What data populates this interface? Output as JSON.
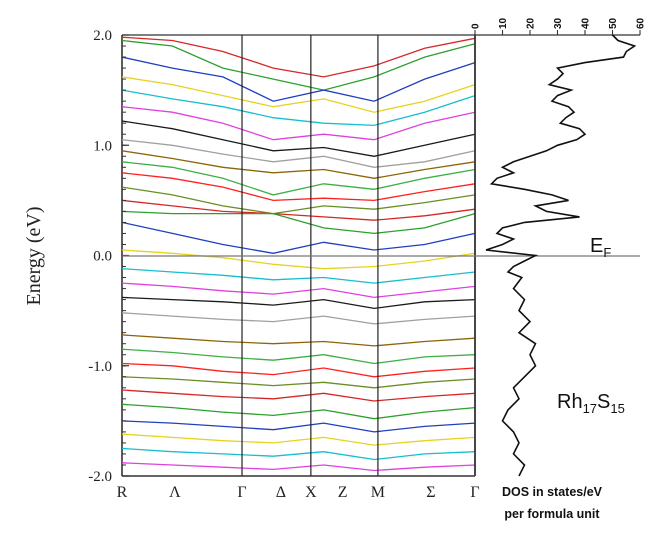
{
  "chart_data": [
    {
      "type": "line",
      "name": "band-structure",
      "ylabel": "Energy (eV)",
      "ylim": [
        -2.0,
        2.0
      ],
      "y_ticks": [
        -2.0,
        -1.0,
        0.0,
        1.0,
        2.0
      ],
      "y_tick_labels": [
        "-2.0",
        "-1.0",
        "0.0",
        "1.0",
        "2.0"
      ],
      "k_points": [
        {
          "label": "R",
          "x": 0.0
        },
        {
          "label": "Λ",
          "x": 0.15
        },
        {
          "label": "Γ",
          "x": 0.34
        },
        {
          "label": "Δ",
          "x": 0.45
        },
        {
          "label": "X",
          "x": 0.535
        },
        {
          "label": "Z",
          "x": 0.625
        },
        {
          "label": "M",
          "x": 0.725
        },
        {
          "label": "Σ",
          "x": 0.875
        },
        {
          "label": "Γ",
          "x": 1.0
        }
      ],
      "high_symmetry_lines": [
        0.34,
        0.535,
        0.725
      ],
      "fermi_level": 0.0,
      "band_colors": [
        "#d62728",
        "#2ca02c",
        "#1f3fbf",
        "#e6d320",
        "#17becf",
        "#e040e0",
        "#1a1a1a",
        "#a0a0a0",
        "#8b6508",
        "#3cb043",
        "#ff2020",
        "#6b8e23"
      ],
      "bands": [
        [
          1.98,
          1.95,
          1.85,
          1.7,
          1.62,
          1.72,
          1.88,
          1.97
        ],
        [
          1.95,
          1.9,
          1.7,
          1.6,
          1.5,
          1.62,
          1.8,
          1.92
        ],
        [
          1.8,
          1.7,
          1.62,
          1.4,
          1.5,
          1.4,
          1.6,
          1.75
        ],
        [
          1.62,
          1.55,
          1.45,
          1.35,
          1.42,
          1.3,
          1.4,
          1.55
        ],
        [
          1.5,
          1.42,
          1.35,
          1.25,
          1.2,
          1.18,
          1.3,
          1.45
        ],
        [
          1.35,
          1.3,
          1.2,
          1.05,
          1.1,
          1.05,
          1.2,
          1.3
        ],
        [
          1.22,
          1.15,
          1.05,
          0.95,
          0.98,
          0.9,
          1.0,
          1.1
        ],
        [
          1.05,
          1.0,
          0.92,
          0.85,
          0.9,
          0.8,
          0.85,
          0.95
        ],
        [
          0.95,
          0.88,
          0.8,
          0.75,
          0.78,
          0.7,
          0.78,
          0.85
        ],
        [
          0.85,
          0.8,
          0.7,
          0.55,
          0.65,
          0.6,
          0.7,
          0.78
        ],
        [
          0.75,
          0.7,
          0.62,
          0.5,
          0.52,
          0.5,
          0.58,
          0.65
        ],
        [
          0.62,
          0.55,
          0.45,
          0.38,
          0.45,
          0.42,
          0.48,
          0.55
        ],
        [
          0.5,
          0.45,
          0.4,
          0.38,
          0.35,
          0.32,
          0.36,
          0.42
        ],
        [
          0.4,
          0.38,
          0.38,
          0.38,
          0.25,
          0.2,
          0.25,
          0.38
        ],
        [
          0.3,
          0.2,
          0.1,
          0.02,
          0.12,
          0.05,
          0.1,
          0.2
        ],
        [
          0.05,
          0.02,
          -0.02,
          -0.08,
          -0.12,
          -0.1,
          -0.05,
          0.02
        ],
        [
          -0.12,
          -0.15,
          -0.18,
          -0.22,
          -0.2,
          -0.25,
          -0.2,
          -0.15
        ],
        [
          -0.25,
          -0.28,
          -0.32,
          -0.35,
          -0.3,
          -0.38,
          -0.33,
          -0.28
        ],
        [
          -0.38,
          -0.4,
          -0.42,
          -0.45,
          -0.4,
          -0.48,
          -0.42,
          -0.4
        ],
        [
          -0.52,
          -0.55,
          -0.58,
          -0.6,
          -0.55,
          -0.62,
          -0.58,
          -0.55
        ],
        [
          -0.72,
          -0.75,
          -0.78,
          -0.8,
          -0.78,
          -0.82,
          -0.78,
          -0.75
        ],
        [
          -0.85,
          -0.88,
          -0.92,
          -0.95,
          -0.9,
          -0.98,
          -0.92,
          -0.9
        ],
        [
          -0.98,
          -1.0,
          -1.05,
          -1.08,
          -1.02,
          -1.1,
          -1.05,
          -1.02
        ],
        [
          -1.1,
          -1.12,
          -1.15,
          -1.18,
          -1.15,
          -1.2,
          -1.15,
          -1.12
        ],
        [
          -1.22,
          -1.25,
          -1.28,
          -1.3,
          -1.25,
          -1.32,
          -1.28,
          -1.25
        ],
        [
          -1.35,
          -1.38,
          -1.42,
          -1.45,
          -1.4,
          -1.48,
          -1.42,
          -1.38
        ],
        [
          -1.5,
          -1.52,
          -1.55,
          -1.58,
          -1.52,
          -1.6,
          -1.55,
          -1.52
        ],
        [
          -1.62,
          -1.65,
          -1.68,
          -1.7,
          -1.65,
          -1.72,
          -1.68,
          -1.65
        ],
        [
          -1.75,
          -1.78,
          -1.8,
          -1.82,
          -1.78,
          -1.85,
          -1.8,
          -1.78
        ],
        [
          -1.88,
          -1.9,
          -1.92,
          -1.94,
          -1.9,
          -1.95,
          -1.92,
          -1.9
        ]
      ]
    },
    {
      "type": "line",
      "name": "density-of-states",
      "xlabel_line1": "DOS in states/eV",
      "xlabel_line2": "per formula unit",
      "xlim": [
        0,
        60
      ],
      "x_ticks": [
        0,
        10,
        20,
        30,
        40,
        50,
        60
      ],
      "x_tick_labels": [
        "0",
        "10",
        "20",
        "30",
        "40",
        "50",
        "60"
      ],
      "ylim": [
        -2.0,
        2.0
      ],
      "annotation_ef": "E",
      "annotation_ef_sub": "F",
      "compound": {
        "p1": "Rh",
        "s1": "17",
        "p2": "S",
        "s2": "15"
      },
      "points": [
        [
          50,
          2.0
        ],
        [
          52,
          1.95
        ],
        [
          58,
          1.9
        ],
        [
          55,
          1.85
        ],
        [
          54,
          1.8
        ],
        [
          40,
          1.75
        ],
        [
          30,
          1.7
        ],
        [
          32,
          1.65
        ],
        [
          30,
          1.6
        ],
        [
          27,
          1.55
        ],
        [
          35,
          1.5
        ],
        [
          30,
          1.45
        ],
        [
          28,
          1.4
        ],
        [
          34,
          1.35
        ],
        [
          36,
          1.3
        ],
        [
          33,
          1.25
        ],
        [
          31,
          1.2
        ],
        [
          38,
          1.15
        ],
        [
          40,
          1.1
        ],
        [
          37,
          1.05
        ],
        [
          30,
          1.0
        ],
        [
          26,
          0.95
        ],
        [
          20,
          0.9
        ],
        [
          14,
          0.85
        ],
        [
          10,
          0.8
        ],
        [
          14,
          0.75
        ],
        [
          8,
          0.7
        ],
        [
          6,
          0.65
        ],
        [
          18,
          0.6
        ],
        [
          28,
          0.55
        ],
        [
          34,
          0.5
        ],
        [
          22,
          0.45
        ],
        [
          26,
          0.4
        ],
        [
          38,
          0.35
        ],
        [
          18,
          0.3
        ],
        [
          10,
          0.25
        ],
        [
          8,
          0.2
        ],
        [
          14,
          0.15
        ],
        [
          10,
          0.1
        ],
        [
          4,
          0.05
        ],
        [
          22,
          0.0
        ],
        [
          18,
          -0.05
        ],
        [
          14,
          -0.1
        ],
        [
          12,
          -0.15
        ],
        [
          17,
          -0.2
        ],
        [
          14,
          -0.3
        ],
        [
          18,
          -0.4
        ],
        [
          16,
          -0.5
        ],
        [
          20,
          -0.6
        ],
        [
          16,
          -0.7
        ],
        [
          22,
          -0.8
        ],
        [
          20,
          -0.9
        ],
        [
          22,
          -1.0
        ],
        [
          18,
          -1.1
        ],
        [
          14,
          -1.2
        ],
        [
          16,
          -1.3
        ],
        [
          12,
          -1.4
        ],
        [
          10,
          -1.5
        ],
        [
          14,
          -1.6
        ],
        [
          16,
          -1.7
        ],
        [
          14,
          -1.8
        ],
        [
          18,
          -1.9
        ],
        [
          16,
          -2.0
        ]
      ]
    }
  ]
}
